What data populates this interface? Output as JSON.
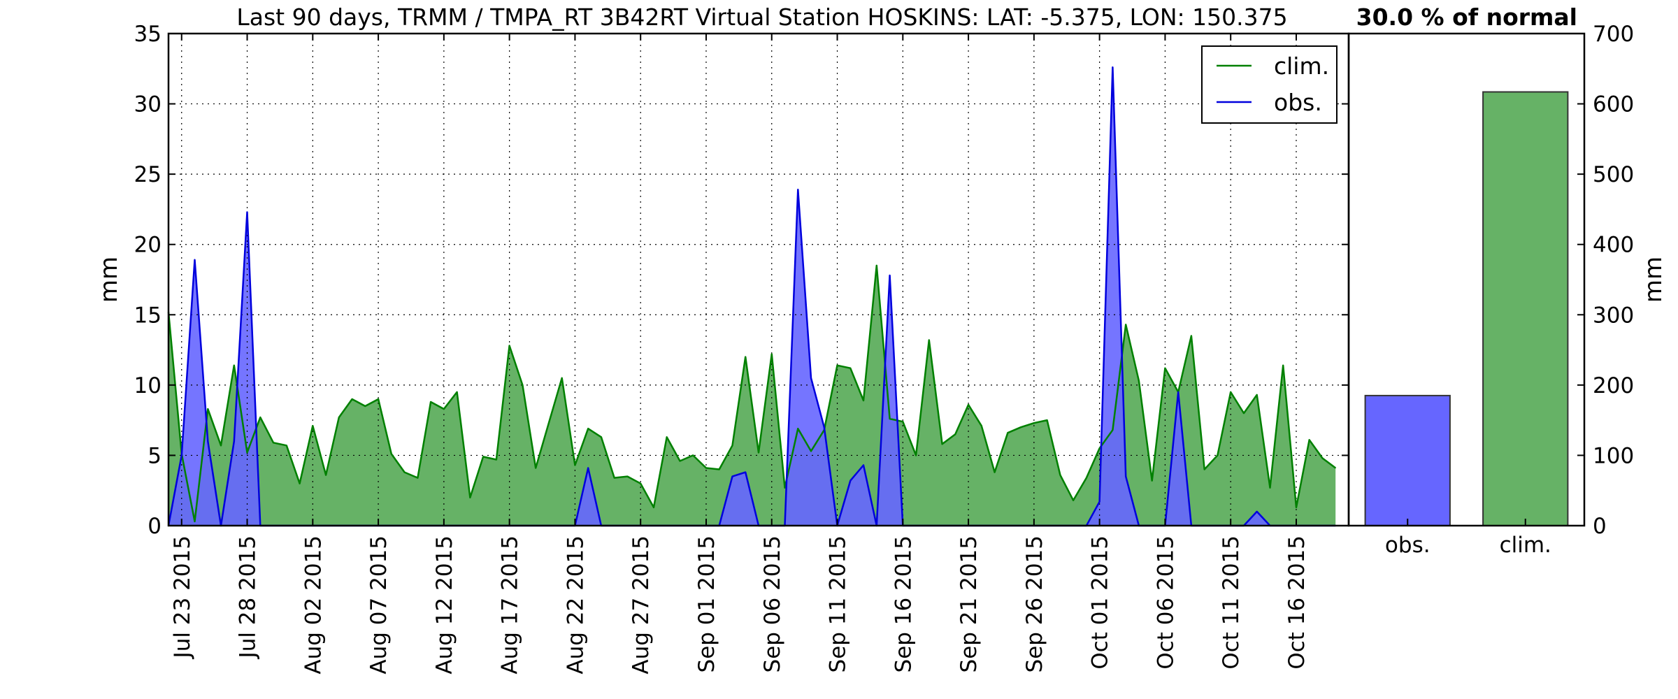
{
  "chart_data": [
    {
      "type": "area",
      "title": "Last 90 days, TRMM / TMPA_RT 3B42RT Virtual Station HOSKINS: LAT: -5.375, LON: 150.375",
      "ylabel": "mm",
      "ylim": [
        0,
        35
      ],
      "yticks": [
        0,
        5,
        10,
        15,
        20,
        25,
        30,
        35
      ],
      "x_start": "Jul 22 2015",
      "x_end": "Oct 20 2015",
      "x_tick_labels": [
        "Jul 23 2015",
        "Jul 28 2015",
        "Aug 02 2015",
        "Aug 07 2015",
        "Aug 12 2015",
        "Aug 17 2015",
        "Aug 22 2015",
        "Aug 27 2015",
        "Sep 01 2015",
        "Sep 06 2015",
        "Sep 11 2015",
        "Sep 16 2015",
        "Sep 21 2015",
        "Sep 26 2015",
        "Oct 01 2015",
        "Oct 06 2015",
        "Oct 11 2015",
        "Oct 16 2015"
      ],
      "grid": true,
      "legend_position": "top-right",
      "series": [
        {
          "name": "clim.",
          "color": "#008000",
          "fill": "#66b266",
          "values": [
            15.2,
            5.1,
            0.3,
            8.3,
            5.7,
            11.4,
            5.2,
            7.7,
            5.9,
            5.7,
            3.0,
            7.1,
            3.6,
            7.7,
            9.0,
            8.5,
            9.0,
            5.1,
            3.8,
            3.4,
            8.8,
            8.3,
            9.5,
            2.0,
            4.9,
            4.7,
            12.8,
            10.0,
            4.1,
            7.3,
            10.5,
            4.3,
            6.9,
            6.3,
            3.4,
            3.5,
            3.0,
            1.3,
            6.3,
            4.6,
            5.0,
            4.1,
            4.0,
            5.7,
            12.0,
            5.2,
            12.2,
            2.7,
            6.9,
            5.3,
            6.8,
            11.4,
            11.2,
            8.9,
            18.5,
            7.6,
            7.4,
            5.0,
            13.2,
            5.8,
            6.5,
            8.6,
            7.1,
            3.8,
            6.6,
            7.0,
            7.3,
            7.5,
            3.6,
            1.8,
            3.4,
            5.5,
            6.8,
            14.3,
            10.3,
            3.2,
            11.2,
            9.5,
            13.5,
            4.0,
            5.0,
            9.5,
            8.0,
            9.3,
            2.7,
            11.4,
            1.3,
            6.1,
            4.8,
            4.1
          ]
        },
        {
          "name": "obs.",
          "color": "#0000dd",
          "fill": "#6666ff",
          "values": [
            0,
            5.0,
            18.9,
            6.0,
            0,
            6.0,
            22.3,
            0,
            0,
            0,
            0,
            0,
            0,
            0,
            0,
            0,
            0,
            0,
            0,
            0,
            0,
            0,
            0,
            0,
            0,
            0,
            0,
            0,
            0,
            0,
            0,
            0,
            4.1,
            0,
            0,
            0,
            0,
            0,
            0,
            0,
            0,
            0,
            0,
            3.5,
            3.8,
            0,
            0,
            0,
            23.9,
            10.5,
            7.0,
            0,
            3.2,
            4.3,
            0,
            17.8,
            0,
            0,
            0,
            0,
            0,
            0,
            0,
            0,
            0,
            0,
            0,
            0,
            0,
            0,
            0,
            1.7,
            32.6,
            3.5,
            0,
            0,
            0,
            9.5,
            0,
            0,
            0,
            0,
            0,
            1.0,
            0,
            0,
            0,
            0,
            0,
            0
          ]
        }
      ]
    },
    {
      "type": "bar",
      "title": "30.0 % of normal",
      "ylabel": "mm",
      "ylim": [
        0,
        700
      ],
      "yticks": [
        0,
        100,
        200,
        300,
        400,
        500,
        600,
        700
      ],
      "categories": [
        "obs.",
        "clim."
      ],
      "values": [
        185,
        617
      ],
      "colors": [
        "#6666ff",
        "#66b266"
      ]
    }
  ]
}
